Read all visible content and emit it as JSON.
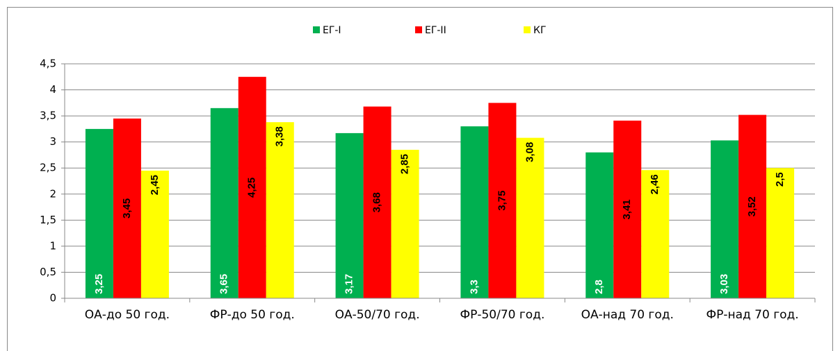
{
  "chart_data": {
    "type": "bar",
    "categories": [
      "ОА-до 50 год.",
      "ФР-до 50 год.",
      "ОА-50/70 год.",
      "ФР-50/70 год.",
      "ОА-над 70 год.",
      "ФР-над 70 год."
    ],
    "series": [
      {
        "name": "ЕГ-I",
        "color": "#00b050",
        "values": [
          3.25,
          3.65,
          3.17,
          3.3,
          2.8,
          3.03
        ],
        "value_labels": [
          "3,25",
          "3,65",
          "3,17",
          "3,3",
          "2,8",
          "3,03"
        ]
      },
      {
        "name": "ЕГ-II",
        "color": "#ff0000",
        "values": [
          3.45,
          4.25,
          3.68,
          3.75,
          3.41,
          3.52
        ],
        "value_labels": [
          "3,45",
          "4,25",
          "3,68",
          "3,75",
          "3,41",
          "3,52"
        ]
      },
      {
        "name": "КГ",
        "color": "#ffff00",
        "values": [
          2.45,
          3.38,
          2.85,
          3.08,
          2.46,
          2.5
        ],
        "value_labels": [
          "2,45",
          "3,38",
          "2,85",
          "3,08",
          "2,46",
          "2,5"
        ]
      }
    ],
    "ylim": [
      0,
      4.5
    ],
    "yticks": [
      0,
      {
        "value": 0.5,
        "label": "0,5"
      },
      1,
      {
        "value": 1.5,
        "label": "1,5"
      },
      2,
      {
        "value": 2.5,
        "label": "2,5"
      },
      3,
      {
        "value": 3.5,
        "label": "3,5"
      },
      4,
      {
        "value": 4.5,
        "label": "4,5"
      }
    ],
    "grid": true,
    "legend": "top"
  }
}
